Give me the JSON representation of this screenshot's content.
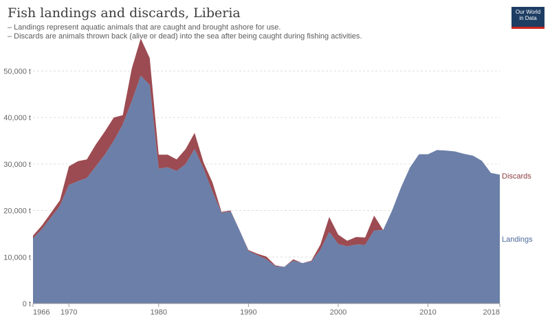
{
  "header": {
    "title": "Fish landings and discards, Liberia",
    "subtitle_lines": [
      "– Landings represent aquatic animals that are caught and brought ashore for use.",
      "– Discards are animals thrown back (alive or dead) into the sea after being caught during fishing activities."
    ],
    "logo_lines": [
      "Our World",
      "in Data"
    ]
  },
  "colors": {
    "landings": "#6b7fa8",
    "discards": "#9c4b52",
    "landings_label": "#4c6a9c",
    "discards_label": "#8a3b41",
    "grid": "#dddddd",
    "logo_bg": "#1d3d63",
    "logo_accent": "#ce261e"
  },
  "chart_data": {
    "type": "area",
    "stacked": true,
    "x": [
      1966,
      1967,
      1968,
      1969,
      1970,
      1971,
      1972,
      1973,
      1974,
      1975,
      1976,
      1977,
      1978,
      1979,
      1980,
      1981,
      1982,
      1983,
      1984,
      1985,
      1986,
      1987,
      1988,
      1989,
      1990,
      1991,
      1992,
      1993,
      1994,
      1995,
      1996,
      1997,
      1998,
      1999,
      2000,
      2001,
      2002,
      2003,
      2004,
      2005,
      2006,
      2007,
      2008,
      2009,
      2010,
      2011,
      2012,
      2013,
      2014,
      2015,
      2016,
      2017,
      2018
    ],
    "series": [
      {
        "name": "Landings",
        "values": [
          14000,
          16000,
          18500,
          21000,
          25500,
          26300,
          27000,
          29500,
          32000,
          35000,
          38500,
          43500,
          49000,
          47000,
          29000,
          29300,
          28500,
          30000,
          33200,
          29000,
          24000,
          19500,
          19800,
          15800,
          11300,
          10400,
          9500,
          8000,
          7900,
          9200,
          8700,
          9000,
          11500,
          15400,
          12800,
          12300,
          12700,
          12600,
          15700,
          15800,
          20000,
          25000,
          29300,
          32100,
          32100,
          33000,
          32900,
          32700,
          32200,
          31800,
          30700,
          28100,
          27700
        ]
      },
      {
        "name": "Discards",
        "values": [
          600,
          800,
          1000,
          1200,
          4000,
          4300,
          4000,
          4700,
          5000,
          5000,
          2000,
          7000,
          8000,
          5800,
          3000,
          2700,
          2500,
          3200,
          3500,
          1300,
          2000,
          200,
          200,
          0,
          200,
          300,
          600,
          200,
          0,
          300,
          0,
          200,
          1100,
          3200,
          2000,
          1200,
          1600,
          1600,
          3200,
          0,
          0,
          0,
          0,
          0,
          0,
          0,
          0,
          0,
          0,
          0,
          0,
          0,
          0
        ]
      }
    ],
    "x_ticks": [
      1966,
      1970,
      1980,
      1990,
      2000,
      2010,
      2018
    ],
    "x_tick_labels": [
      "1966",
      "1970",
      "1980",
      "1990",
      "2000",
      "2010",
      "2018"
    ],
    "y_ticks": [
      0,
      10000,
      20000,
      30000,
      40000,
      50000
    ],
    "y_tick_labels": [
      "0 t",
      "10,000 t",
      "20,000 t",
      "30,000 t",
      "40,000 t",
      "50,000 t"
    ],
    "ylim": [
      0,
      57000
    ],
    "xlim": [
      1966,
      2018
    ],
    "grid": "horizontal dashed",
    "legend": "right, inline labels"
  }
}
